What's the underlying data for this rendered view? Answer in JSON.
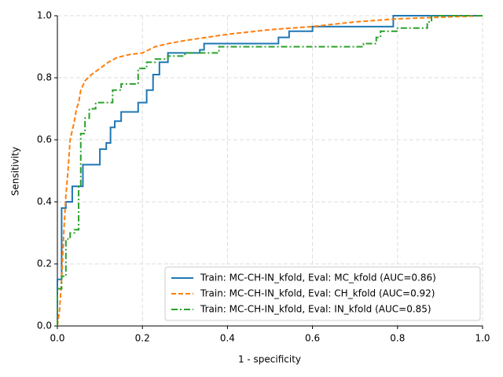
{
  "chart_data": {
    "type": "line",
    "xlabel": "1 - specificity",
    "ylabel": "Sensitivity",
    "xlim": [
      0,
      1
    ],
    "ylim": [
      0,
      1
    ],
    "xticks": [
      {
        "value": 0,
        "label": "0.0"
      },
      0.2,
      0.4,
      0.6,
      0.8,
      {
        "value": 1,
        "label": "1.0"
      }
    ],
    "yticks": [
      {
        "value": 0,
        "label": "0.0"
      },
      0.2,
      0.4,
      0.6,
      0.8,
      {
        "value": 1,
        "label": "1.0"
      }
    ],
    "grid": true,
    "legend": "lower right",
    "series": [
      {
        "name": "Train: MC-CH-IN_kfold, Eval: MC_kfold (AUC=0.86)",
        "color": "#1f77b4",
        "linestyle": "solid",
        "x": [
          0,
          0,
          0.01,
          0.01,
          0.02,
          0.02,
          0.035,
          0.035,
          0.06,
          0.06,
          0.1,
          0.1,
          0.115,
          0.115,
          0.125,
          0.125,
          0.135,
          0.135,
          0.15,
          0.15,
          0.19,
          0.19,
          0.21,
          0.21,
          0.225,
          0.225,
          0.24,
          0.24,
          0.26,
          0.26,
          0.335,
          0.335,
          0.345,
          0.345,
          0.52,
          0.52,
          0.545,
          0.545,
          0.6,
          0.6,
          0.79,
          0.79,
          1
        ],
        "values": [
          0,
          0.15,
          0.15,
          0.38,
          0.38,
          0.4,
          0.4,
          0.45,
          0.45,
          0.52,
          0.52,
          0.57,
          0.57,
          0.59,
          0.59,
          0.64,
          0.64,
          0.66,
          0.66,
          0.69,
          0.69,
          0.72,
          0.72,
          0.76,
          0.76,
          0.81,
          0.81,
          0.85,
          0.85,
          0.88,
          0.88,
          0.89,
          0.89,
          0.91,
          0.91,
          0.93,
          0.93,
          0.95,
          0.95,
          0.965,
          0.965,
          1,
          1
        ]
      },
      {
        "name": "Train: MC-CH-IN_kfold, Eval: CH_kfold (AUC=0.92)",
        "color": "#ff7f0e",
        "linestyle": "dashed",
        "x": [
          0,
          0.005,
          0.01,
          0.015,
          0.02,
          0.025,
          0.03,
          0.04,
          0.045,
          0.05,
          0.055,
          0.065,
          0.08,
          0.1,
          0.12,
          0.14,
          0.17,
          0.2,
          0.23,
          0.26,
          0.3,
          0.35,
          0.4,
          0.5,
          0.6,
          0.7,
          0.8,
          0.9,
          1
        ],
        "values": [
          0,
          0.05,
          0.15,
          0.3,
          0.42,
          0.5,
          0.6,
          0.66,
          0.7,
          0.72,
          0.76,
          0.79,
          0.81,
          0.83,
          0.85,
          0.865,
          0.875,
          0.88,
          0.9,
          0.91,
          0.92,
          0.93,
          0.94,
          0.955,
          0.965,
          0.98,
          0.99,
          0.995,
          1
        ]
      },
      {
        "name": "Train: MC-CH-IN_kfold, Eval: IN_kfold (AUC=0.85)",
        "color": "#2ca02c",
        "linestyle": "dashdot",
        "x": [
          0,
          0,
          0.01,
          0.01,
          0.02,
          0.02,
          0.03,
          0.03,
          0.04,
          0.04,
          0.05,
          0.05,
          0.055,
          0.055,
          0.065,
          0.065,
          0.075,
          0.075,
          0.09,
          0.09,
          0.13,
          0.13,
          0.15,
          0.15,
          0.19,
          0.19,
          0.21,
          0.21,
          0.23,
          0.23,
          0.26,
          0.26,
          0.3,
          0.3,
          0.38,
          0.38,
          0.72,
          0.72,
          0.75,
          0.75,
          0.76,
          0.76,
          0.8,
          0.8,
          0.87,
          0.87,
          0.88,
          0.88,
          1
        ],
        "values": [
          0,
          0.12,
          0.12,
          0.16,
          0.16,
          0.28,
          0.28,
          0.3,
          0.3,
          0.31,
          0.31,
          0.45,
          0.45,
          0.62,
          0.62,
          0.67,
          0.67,
          0.7,
          0.7,
          0.72,
          0.72,
          0.76,
          0.76,
          0.78,
          0.78,
          0.83,
          0.83,
          0.85,
          0.85,
          0.86,
          0.86,
          0.87,
          0.87,
          0.88,
          0.88,
          0.9,
          0.9,
          0.91,
          0.91,
          0.93,
          0.93,
          0.95,
          0.95,
          0.96,
          0.96,
          0.98,
          0.98,
          1,
          1
        ]
      }
    ]
  }
}
